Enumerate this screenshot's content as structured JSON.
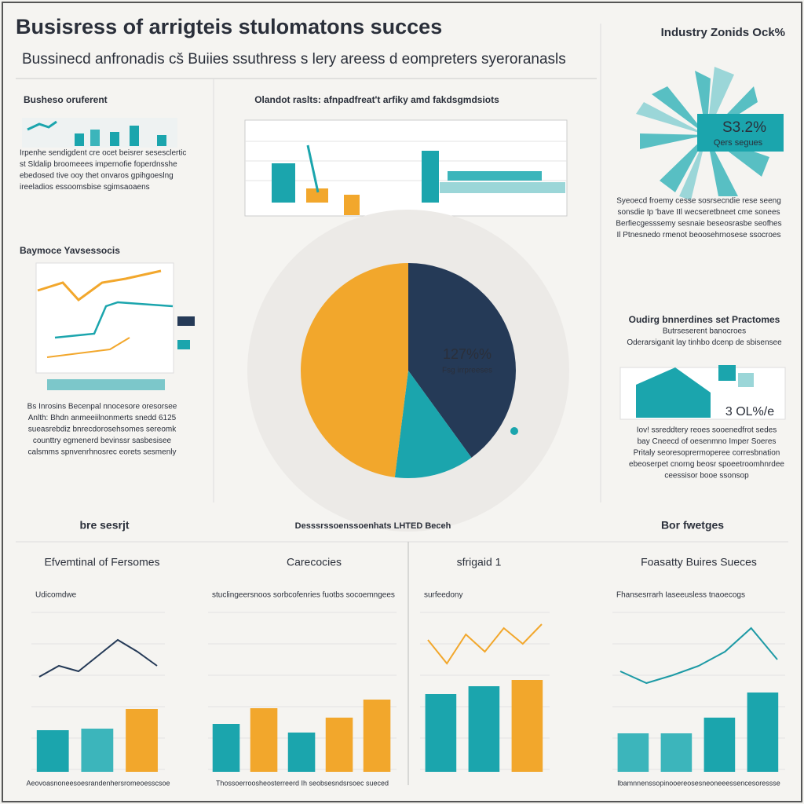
{
  "header": {
    "title": "Busisress of arrigteis stulomatons succes",
    "subtitle": "Bussinecd anfronadis cš Buiies ssuthress s lery areess d eompreters syeroranasls",
    "corner": "Industry Zonids Ock%"
  },
  "blocks": [
    {
      "heading": "Busheso oruferent",
      "lines": [
        "Irpenhe sendigdent cre ocet beisrer sesesclertic",
        "st Sldalip broomeees impernofie foperdnsshe",
        "ebedosed tive ooy thet onvaros gpihgoeslng",
        "ireeladios essoomsbise sgimsaoaens"
      ]
    },
    {
      "heading": "Olandot raslts: afnpadfreat't arfiky amd fakdsgmdsiots",
      "lines": []
    },
    {
      "heading": "Baymoce Yavsessocis",
      "lines": [
        "Bs Inrosins Becenpal nnocesore oresorsee",
        "Anlth: Bhdn anmeeiilnonmerts snedd 6125",
        "sueasrebdiz bnrecdorosehsomes sereomk",
        "counttry egmenerd bevinssr sasbesisee",
        "calsmms spnvenrhnosrec eorets sesmenly"
      ]
    },
    {
      "heading": "",
      "lines": [
        "Syeoecd froemy cesse sosrsecndie rese seeng",
        "sonsdie Ip 'bave IIl wecseretbneet cme sonees",
        "Berfiecgesssemy sesnaie beseosrasbe seofhes",
        "Il Ptnesnedo rmenot beoosehrnosese ssocroes"
      ]
    },
    {
      "heading": "Oudirg bnnerdines set Practomes",
      "lines": [
        "Butrseserent banocroes",
        "Oderarsiganit lay tinhbo dcenp de sbisensee"
      ]
    },
    {
      "heading": "",
      "lines": [
        "Iov! ssreddtery reoes sooenedfrot sedes",
        "bay Cneecd of oesenmno Imper Soeres",
        "Pritaly seoresoprermoperee corresbnation",
        "ebeoserpet cnorng beosr spoeetroomhnrdee",
        "ceessisor booe ssonsop"
      ]
    },
    {
      "heading": "bre sesrjt",
      "lines": []
    },
    {
      "heading": "Desssrssoenssoenhats LHTED Beceh",
      "lines": []
    },
    {
      "heading": "Bor fwetges",
      "lines": []
    }
  ],
  "badge": "3 OL%/e",
  "sunburst": {
    "label": "S3.2%",
    "sublabel": "Qers segues"
  },
  "chart_data": [
    {
      "type": "pie",
      "label": "127%%",
      "sublabel": "Fsg irrpreeses",
      "values": [
        40,
        12,
        48
      ],
      "colors": [
        "#253a57",
        "#1ba5ad",
        "#f2a72c"
      ]
    },
    {
      "type": "bar",
      "title": "Efvemtinal of Fersomes",
      "caption": "Udicomdwe",
      "footer": "Aeovoasnoneesoesrandenhersromeoesscsoe",
      "values": [
        53,
        55,
        80
      ],
      "colors": [
        "#1ba5ad",
        "#3cb5bb",
        "#f2a72c"
      ],
      "line": [
        121,
        135,
        128,
        148,
        168,
        153,
        135
      ],
      "line_color": "#253a57",
      "ylim": [
        0,
        200
      ]
    },
    {
      "type": "bar",
      "title": "Carecocies",
      "caption": "stuclingeersnoos sorbcofenries fuotbs socoemngees",
      "footer": "Thossoerroosheosterreerd Ih seobsesndsrsoec sueced",
      "values": [
        61,
        81,
        50,
        69,
        92
      ],
      "colors": [
        "#1ba5ad",
        "#f2a72c",
        "#1ba5ad",
        "#f2a72c",
        "#f2a72c"
      ],
      "ylim": [
        0,
        200
      ]
    },
    {
      "type": "bar",
      "title": "sfrigaid 1",
      "caption": "surfeedony",
      "footer": "",
      "values": [
        99,
        109,
        117
      ],
      "colors": [
        "#1ba5ad",
        "#1ba5ad",
        "#f2a72c"
      ],
      "line": [
        168,
        138,
        175,
        153,
        183,
        163,
        188
      ],
      "line_color": "#f2a72c",
      "ylim": [
        0,
        200
      ]
    },
    {
      "type": "bar",
      "title": "Foasatty Buires Sueces",
      "caption": "Fhansesrrarh Iaseeusless tnaoecogs",
      "footer": "Ibamnnenssopinooereosesneoneeessencesoressse",
      "values": [
        49,
        49,
        69,
        101
      ],
      "colors": [
        "#3cb5bb",
        "#3cb5bb",
        "#1ba5ad",
        "#1ba5ad"
      ],
      "line": [
        128,
        113,
        123,
        135,
        153,
        183,
        143
      ],
      "line_color": "#1d9aa5",
      "ylim": [
        0,
        200
      ]
    }
  ]
}
